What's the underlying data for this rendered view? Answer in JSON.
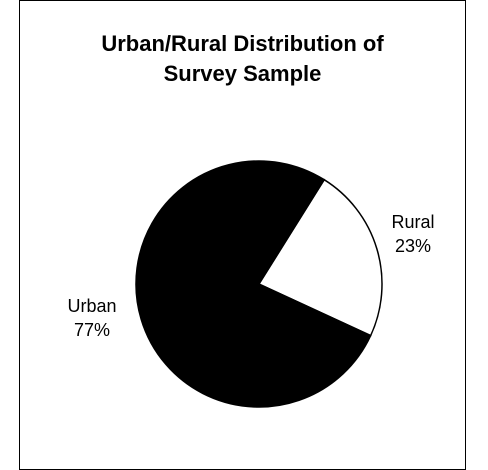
{
  "chart_data": {
    "type": "pie",
    "title": [
      "Urban/Rural Distribution of",
      "Survey Sample"
    ],
    "slices": [
      {
        "label": "Rural",
        "percent_label": "23%",
        "value": 23,
        "color": "#ffffff"
      },
      {
        "label": "Urban",
        "percent_label": "77%",
        "value": 77,
        "color": "#000000"
      }
    ],
    "start_angle_deg": 58,
    "legend": "none"
  }
}
